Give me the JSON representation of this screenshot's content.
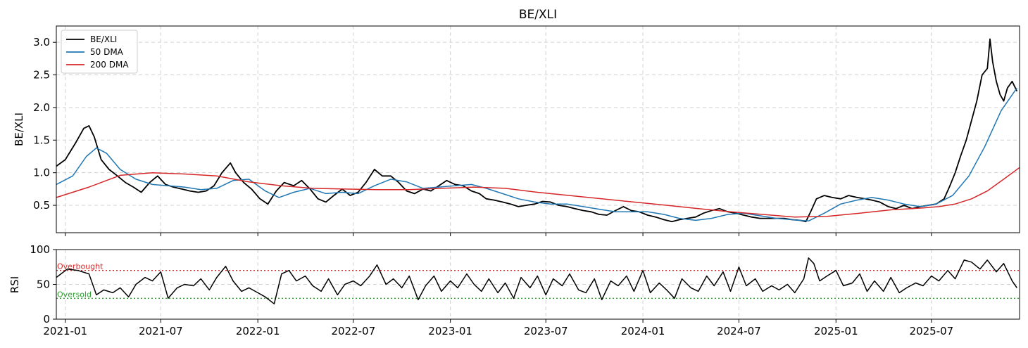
{
  "figure": {
    "title": "BE/XLI"
  },
  "colors": {
    "ratio": "#000000",
    "ma50": "#1f77b4",
    "ma200": "#d62728",
    "overbought": "#d62728",
    "oversold": "#2ca02c",
    "grid": "#d0d0d0"
  },
  "chart_data": [
    {
      "type": "line",
      "title": "BE/XLI",
      "xlabel": "",
      "ylabel": "BE/XLI",
      "xlim": [
        "2020-12-15",
        "2025-12-15"
      ],
      "ylim": [
        0.08,
        3.25
      ],
      "yticks": [
        0.5,
        1.0,
        1.5,
        2.0,
        2.5,
        3.0
      ],
      "xticks": [
        "2021-01",
        "2021-07",
        "2022-01",
        "2022-07",
        "2023-01",
        "2023-07",
        "2024-01",
        "2024-07",
        "2025-01",
        "2025-07"
      ],
      "grid": true,
      "legend": "top-left",
      "series": [
        {
          "name": "BE/XLI",
          "x": [
            "2020-12-15",
            "2021-01-01",
            "2021-01-20",
            "2021-02-05",
            "2021-02-15",
            "2021-02-25",
            "2021-03-10",
            "2021-03-25",
            "2021-04-10",
            "2021-04-25",
            "2021-05-10",
            "2021-05-25",
            "2021-06-10",
            "2021-06-25",
            "2021-07-10",
            "2021-07-25",
            "2021-08-10",
            "2021-08-25",
            "2021-09-10",
            "2021-09-25",
            "2021-10-10",
            "2021-10-25",
            "2021-11-10",
            "2021-11-20",
            "2021-12-05",
            "2021-12-20",
            "2022-01-05",
            "2022-01-20",
            "2022-02-05",
            "2022-02-20",
            "2022-03-10",
            "2022-03-25",
            "2022-04-10",
            "2022-04-25",
            "2022-05-10",
            "2022-05-25",
            "2022-06-10",
            "2022-06-25",
            "2022-07-10",
            "2022-07-25",
            "2022-08-10",
            "2022-08-25",
            "2022-09-10",
            "2022-09-25",
            "2022-10-10",
            "2022-10-25",
            "2022-11-10",
            "2022-11-25",
            "2022-12-10",
            "2022-12-25",
            "2023-01-10",
            "2023-01-25",
            "2023-02-10",
            "2023-02-25",
            "2023-03-10",
            "2023-03-25",
            "2023-04-10",
            "2023-04-25",
            "2023-05-10",
            "2023-05-25",
            "2023-06-10",
            "2023-06-25",
            "2023-07-10",
            "2023-07-25",
            "2023-08-10",
            "2023-08-25",
            "2023-09-10",
            "2023-09-25",
            "2023-10-10",
            "2023-10-25",
            "2023-11-10",
            "2023-11-25",
            "2023-12-10",
            "2023-12-25",
            "2024-01-10",
            "2024-01-25",
            "2024-02-10",
            "2024-02-25",
            "2024-03-10",
            "2024-03-25",
            "2024-04-10",
            "2024-04-25",
            "2024-05-10",
            "2024-05-25",
            "2024-06-10",
            "2024-06-25",
            "2024-07-10",
            "2024-07-25",
            "2024-08-10",
            "2024-08-25",
            "2024-09-10",
            "2024-09-25",
            "2024-10-10",
            "2024-10-25",
            "2024-11-05",
            "2024-11-15",
            "2024-11-25",
            "2024-12-10",
            "2024-12-25",
            "2025-01-10",
            "2025-01-25",
            "2025-02-10",
            "2025-02-25",
            "2025-03-10",
            "2025-03-25",
            "2025-04-10",
            "2025-04-25",
            "2025-05-10",
            "2025-05-25",
            "2025-06-10",
            "2025-06-25",
            "2025-07-10",
            "2025-07-25",
            "2025-08-05",
            "2025-08-15",
            "2025-08-25",
            "2025-09-05",
            "2025-09-15",
            "2025-09-25",
            "2025-10-05",
            "2025-10-15",
            "2025-10-20",
            "2025-10-25",
            "2025-11-01",
            "2025-11-08",
            "2025-11-15",
            "2025-11-22",
            "2025-12-01",
            "2025-12-10"
          ],
          "values": [
            1.1,
            1.2,
            1.45,
            1.68,
            1.72,
            1.55,
            1.2,
            1.05,
            0.95,
            0.85,
            0.78,
            0.7,
            0.85,
            0.95,
            0.82,
            0.78,
            0.75,
            0.72,
            0.7,
            0.72,
            0.8,
            1.0,
            1.15,
            1.0,
            0.85,
            0.75,
            0.6,
            0.52,
            0.72,
            0.85,
            0.8,
            0.88,
            0.75,
            0.6,
            0.55,
            0.65,
            0.75,
            0.65,
            0.7,
            0.85,
            1.05,
            0.95,
            0.95,
            0.85,
            0.72,
            0.68,
            0.75,
            0.72,
            0.8,
            0.88,
            0.82,
            0.8,
            0.72,
            0.68,
            0.6,
            0.58,
            0.55,
            0.52,
            0.48,
            0.5,
            0.52,
            0.56,
            0.55,
            0.5,
            0.48,
            0.45,
            0.42,
            0.4,
            0.36,
            0.35,
            0.42,
            0.48,
            0.42,
            0.4,
            0.35,
            0.32,
            0.28,
            0.25,
            0.28,
            0.3,
            0.32,
            0.38,
            0.42,
            0.45,
            0.4,
            0.38,
            0.35,
            0.32,
            0.3,
            0.3,
            0.3,
            0.3,
            0.28,
            0.27,
            0.25,
            0.42,
            0.6,
            0.65,
            0.62,
            0.6,
            0.65,
            0.62,
            0.6,
            0.58,
            0.55,
            0.48,
            0.45,
            0.5,
            0.45,
            0.48,
            0.5,
            0.52,
            0.6,
            0.8,
            1.0,
            1.25,
            1.5,
            1.8,
            2.1,
            2.5,
            2.6,
            3.05,
            2.7,
            2.4,
            2.2,
            2.1,
            2.3,
            2.4,
            2.25
          ]
        },
        {
          "name": "50 DMA",
          "x": [
            "2020-12-15",
            "2021-01-15",
            "2021-02-10",
            "2021-03-01",
            "2021-03-20",
            "2021-04-15",
            "2021-05-15",
            "2021-06-15",
            "2021-07-15",
            "2021-08-15",
            "2021-09-15",
            "2021-10-15",
            "2021-11-15",
            "2021-12-15",
            "2022-01-15",
            "2022-02-10",
            "2022-03-10",
            "2022-04-10",
            "2022-05-10",
            "2022-06-10",
            "2022-07-10",
            "2022-08-10",
            "2022-09-10",
            "2022-10-10",
            "2022-11-10",
            "2022-12-10",
            "2023-01-10",
            "2023-02-10",
            "2023-03-10",
            "2023-04-10",
            "2023-05-10",
            "2023-06-10",
            "2023-07-10",
            "2023-08-10",
            "2023-09-10",
            "2023-10-10",
            "2023-11-10",
            "2023-12-10",
            "2024-01-10",
            "2024-02-10",
            "2024-03-10",
            "2024-04-10",
            "2024-05-10",
            "2024-06-10",
            "2024-07-10",
            "2024-08-10",
            "2024-09-10",
            "2024-10-10",
            "2024-11-10",
            "2024-12-10",
            "2025-01-10",
            "2025-02-10",
            "2025-03-10",
            "2025-04-10",
            "2025-05-10",
            "2025-06-10",
            "2025-07-10",
            "2025-08-10",
            "2025-09-10",
            "2025-10-10",
            "2025-11-10",
            "2025-12-10"
          ],
          "values": [
            0.82,
            0.95,
            1.25,
            1.38,
            1.3,
            1.05,
            0.9,
            0.82,
            0.8,
            0.78,
            0.74,
            0.76,
            0.88,
            0.9,
            0.72,
            0.62,
            0.7,
            0.76,
            0.68,
            0.7,
            0.68,
            0.8,
            0.9,
            0.86,
            0.76,
            0.78,
            0.8,
            0.82,
            0.76,
            0.68,
            0.6,
            0.55,
            0.52,
            0.52,
            0.48,
            0.44,
            0.4,
            0.4,
            0.4,
            0.36,
            0.3,
            0.27,
            0.3,
            0.36,
            0.38,
            0.34,
            0.3,
            0.28,
            0.26,
            0.38,
            0.52,
            0.58,
            0.62,
            0.58,
            0.52,
            0.48,
            0.52,
            0.65,
            0.95,
            1.4,
            1.95,
            2.3
          ]
        },
        {
          "name": "200 DMA",
          "x": [
            "2020-12-15",
            "2021-02-15",
            "2021-04-15",
            "2021-06-15",
            "2021-08-15",
            "2021-10-15",
            "2021-12-15",
            "2022-02-15",
            "2022-04-15",
            "2022-06-15",
            "2022-08-15",
            "2022-10-15",
            "2022-12-15",
            "2023-02-15",
            "2023-04-15",
            "2023-06-15",
            "2023-08-15",
            "2023-10-15",
            "2023-12-15",
            "2024-02-15",
            "2024-04-15",
            "2024-06-15",
            "2024-08-15",
            "2024-10-15",
            "2024-12-15",
            "2025-02-15",
            "2025-04-15",
            "2025-06-15",
            "2025-07-15",
            "2025-08-15",
            "2025-09-15",
            "2025-10-15",
            "2025-11-15",
            "2025-12-15"
          ],
          "values": [
            0.62,
            0.78,
            0.96,
            1.0,
            0.98,
            0.95,
            0.86,
            0.8,
            0.76,
            0.75,
            0.74,
            0.74,
            0.76,
            0.78,
            0.76,
            0.7,
            0.65,
            0.6,
            0.55,
            0.5,
            0.45,
            0.4,
            0.36,
            0.32,
            0.33,
            0.38,
            0.43,
            0.46,
            0.48,
            0.52,
            0.6,
            0.72,
            0.9,
            1.08
          ]
        }
      ]
    },
    {
      "type": "line",
      "xlabel": "",
      "ylabel": "RSI",
      "xlim": [
        "2020-12-15",
        "2025-12-15"
      ],
      "ylim": [
        0,
        100
      ],
      "yticks": [
        0,
        50,
        100
      ],
      "xticks": [
        "2021-01",
        "2021-07",
        "2022-01",
        "2022-07",
        "2023-01",
        "2023-07",
        "2024-01",
        "2024-07",
        "2025-01",
        "2025-07"
      ],
      "grid": true,
      "thresholds": [
        {
          "label": "Overbought",
          "value": 70
        },
        {
          "label": "Oversold",
          "value": 30
        }
      ],
      "series": [
        {
          "name": "RSI",
          "x": [
            "2020-12-15",
            "2021-01-05",
            "2021-01-25",
            "2021-02-15",
            "2021-03-01",
            "2021-03-15",
            "2021-04-01",
            "2021-04-15",
            "2021-05-01",
            "2021-05-15",
            "2021-06-01",
            "2021-06-15",
            "2021-07-01",
            "2021-07-15",
            "2021-08-01",
            "2021-08-15",
            "2021-09-01",
            "2021-09-15",
            "2021-10-01",
            "2021-10-15",
            "2021-11-01",
            "2021-11-15",
            "2021-12-01",
            "2021-12-15",
            "2022-01-01",
            "2022-01-15",
            "2022-02-01",
            "2022-02-15",
            "2022-03-01",
            "2022-03-15",
            "2022-04-01",
            "2022-04-15",
            "2022-05-01",
            "2022-05-15",
            "2022-06-01",
            "2022-06-15",
            "2022-07-01",
            "2022-07-15",
            "2022-08-01",
            "2022-08-15",
            "2022-09-01",
            "2022-09-15",
            "2022-10-01",
            "2022-10-15",
            "2022-11-01",
            "2022-11-15",
            "2022-12-01",
            "2022-12-15",
            "2023-01-01",
            "2023-01-15",
            "2023-02-01",
            "2023-02-15",
            "2023-03-01",
            "2023-03-15",
            "2023-04-01",
            "2023-04-15",
            "2023-05-01",
            "2023-05-15",
            "2023-06-01",
            "2023-06-15",
            "2023-07-01",
            "2023-07-15",
            "2023-08-01",
            "2023-08-15",
            "2023-09-01",
            "2023-09-15",
            "2023-10-01",
            "2023-10-15",
            "2023-11-01",
            "2023-11-15",
            "2023-12-01",
            "2023-12-15",
            "2024-01-01",
            "2024-01-15",
            "2024-02-01",
            "2024-02-15",
            "2024-03-01",
            "2024-03-15",
            "2024-04-01",
            "2024-04-15",
            "2024-05-01",
            "2024-05-15",
            "2024-06-01",
            "2024-06-15",
            "2024-07-01",
            "2024-07-15",
            "2024-08-01",
            "2024-08-15",
            "2024-09-01",
            "2024-09-15",
            "2024-10-01",
            "2024-10-15",
            "2024-11-01",
            "2024-11-10",
            "2024-11-20",
            "2024-12-01",
            "2024-12-15",
            "2025-01-01",
            "2025-01-15",
            "2025-02-01",
            "2025-02-15",
            "2025-03-01",
            "2025-03-15",
            "2025-04-01",
            "2025-04-15",
            "2025-05-01",
            "2025-05-15",
            "2025-06-01",
            "2025-06-15",
            "2025-07-01",
            "2025-07-15",
            "2025-08-01",
            "2025-08-15",
            "2025-09-01",
            "2025-09-15",
            "2025-10-01",
            "2025-10-15",
            "2025-11-01",
            "2025-11-15",
            "2025-12-01",
            "2025-12-10"
          ],
          "values": [
            60,
            72,
            70,
            65,
            35,
            42,
            38,
            45,
            32,
            50,
            60,
            55,
            68,
            30,
            45,
            50,
            48,
            58,
            42,
            60,
            76,
            55,
            40,
            45,
            38,
            32,
            22,
            65,
            70,
            55,
            62,
            48,
            40,
            58,
            35,
            50,
            55,
            48,
            62,
            78,
            50,
            58,
            45,
            62,
            28,
            48,
            62,
            40,
            55,
            45,
            65,
            50,
            40,
            58,
            38,
            52,
            30,
            60,
            45,
            62,
            35,
            58,
            48,
            65,
            42,
            38,
            58,
            28,
            55,
            48,
            62,
            40,
            70,
            38,
            52,
            42,
            30,
            58,
            45,
            40,
            62,
            48,
            68,
            40,
            75,
            48,
            58,
            40,
            48,
            42,
            50,
            38,
            58,
            88,
            80,
            55,
            62,
            70,
            48,
            52,
            65,
            40,
            55,
            40,
            60,
            38,
            45,
            52,
            48,
            62,
            55,
            70,
            58,
            85,
            82,
            72,
            85,
            68,
            80,
            55,
            45
          ]
        }
      ]
    }
  ]
}
